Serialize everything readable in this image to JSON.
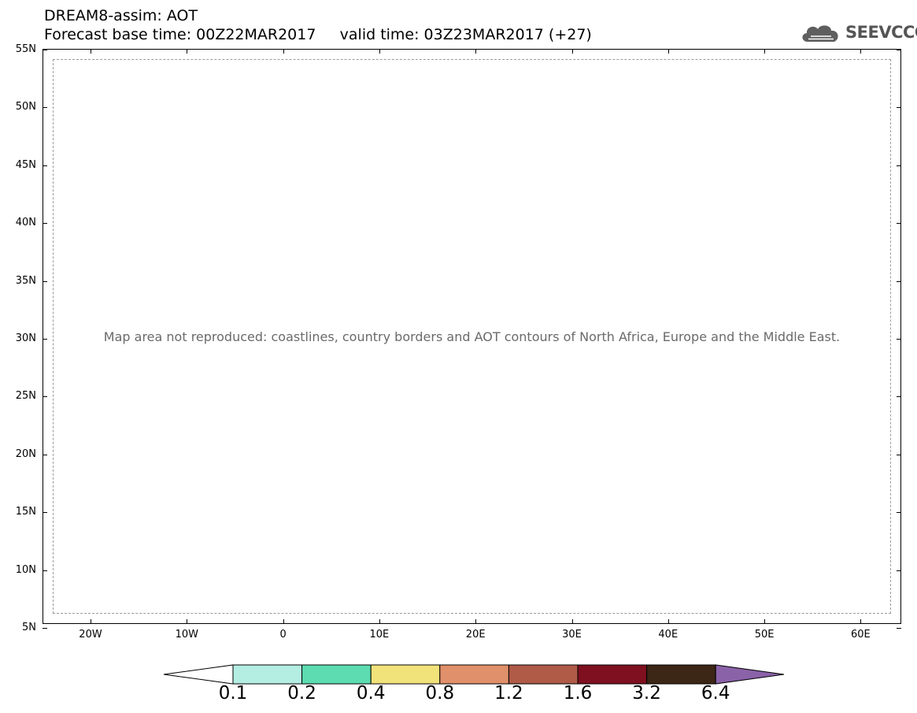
{
  "header": {
    "line1": "DREAM8-assim: AOT",
    "line2": "Forecast base time: 00Z22MAR2017     valid time: 03Z23MAR2017 (+27)"
  },
  "brand": {
    "name": "SEEVCCC",
    "icon": "cloud-icon"
  },
  "map": {
    "lat_ticks": [
      "55N",
      "50N",
      "45N",
      "40N",
      "35N",
      "30N",
      "25N",
      "20N",
      "15N",
      "10N",
      "5N"
    ],
    "lon_ticks": [
      "20W",
      "10W",
      "0",
      "10E",
      "20E",
      "30E",
      "40E",
      "50E",
      "60E"
    ],
    "placeholder_text": "Map area not reproduced: coastlines, country borders and AOT contours of North Africa, Europe and the Middle East."
  },
  "colorbar": {
    "levels": [
      "0.1",
      "0.2",
      "0.4",
      "0.8",
      "1.2",
      "1.6",
      "3.2",
      "6.4"
    ],
    "colors": [
      "#ffffff",
      "#b4eee2",
      "#5cdcb0",
      "#f2e27a",
      "#e0906a",
      "#b05a48",
      "#7e1020",
      "#3c2616",
      "#8a62a8"
    ]
  }
}
